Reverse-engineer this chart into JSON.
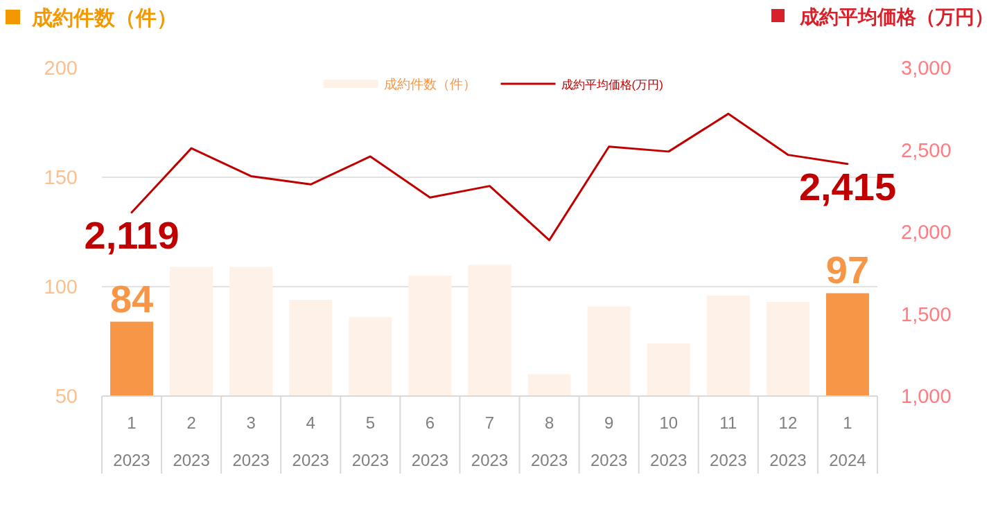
{
  "chart_data": {
    "type": "bar",
    "ylabel": "成約件数（件）",
    "y2label": "成約平均価格（万円）",
    "categories": [
      "1\n2023",
      "2\n2023",
      "3\n2023",
      "4\n2023",
      "5\n2023",
      "6\n2023",
      "7\n2023",
      "8\n2023",
      "9\n2023",
      "10\n2023",
      "11\n2023",
      "12\n2023",
      "1\n2024"
    ],
    "series": [
      {
        "name": "成約件数（件）",
        "color": "#fdf1e8",
        "colors": [
          "#f79646",
          "#fdf1e8",
          "#fdf1e8",
          "#fdf1e8",
          "#fdf1e8",
          "#fdf1e8",
          "#fdf1e8",
          "#fdf1e8",
          "#fdf1e8",
          "#fdf1e8",
          "#fdf1e8",
          "#fdf1e8",
          "#f79646"
        ],
        "values": [
          84,
          109,
          109,
          94,
          86,
          105,
          110,
          60,
          91,
          74,
          96,
          93,
          97
        ],
        "value_labels": [
          "84",
          null,
          null,
          null,
          null,
          null,
          null,
          null,
          null,
          null,
          null,
          null,
          "97"
        ]
      },
      {
        "name": "成約平均価格(万円)",
        "type": "line",
        "axis": "y2",
        "color": "#c00000",
        "values": [
          2119,
          2510,
          2340,
          2290,
          2460,
          2210,
          2280,
          1950,
          2520,
          2490,
          2720,
          2470,
          2415
        ],
        "value_labels": [
          "2,119",
          null,
          null,
          null,
          null,
          null,
          null,
          null,
          null,
          null,
          null,
          null,
          "2,415"
        ]
      }
    ],
    "ylim": [
      50,
      200
    ],
    "yticks": [
      50,
      100,
      150,
      200
    ],
    "y2lim": [
      1000,
      3000
    ],
    "y2ticks": [
      {
        "value": 1000,
        "label": "1,000"
      },
      {
        "value": 1500,
        "label": "1,500"
      },
      {
        "value": 2000,
        "label": "2,000"
      },
      {
        "value": 2500,
        "label": "2,500"
      },
      {
        "value": 3000,
        "label": "3,000"
      }
    ],
    "grid": "y",
    "legend": "top"
  }
}
